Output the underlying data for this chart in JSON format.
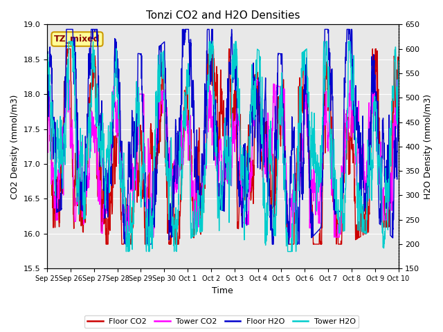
{
  "title": "Tonzi CO2 and H2O Densities",
  "xlabel": "Time",
  "ylabel_left": "CO2 Density (mmol/m3)",
  "ylabel_right": "H2O Density (mmol/m3)",
  "ylim_left": [
    15.5,
    19.0
  ],
  "ylim_right": [
    150,
    650
  ],
  "yticks_left": [
    15.5,
    16.0,
    16.5,
    17.0,
    17.5,
    18.0,
    18.5,
    19.0
  ],
  "yticks_right": [
    150,
    200,
    250,
    300,
    350,
    400,
    450,
    500,
    550,
    600,
    650
  ],
  "xtick_labels": [
    "Sep 25",
    "Sep 26",
    "Sep 27",
    "Sep 28",
    "Sep 29",
    "Sep 30",
    "Oct 1",
    "Oct 2",
    "Oct 3",
    "Oct 4",
    "Oct 5",
    "Oct 6",
    "Oct 7",
    "Oct 8",
    "Oct 9",
    "Oct 10"
  ],
  "colors": {
    "floor_co2": "#cc0000",
    "tower_co2": "#ff00ff",
    "floor_h2o": "#0000cc",
    "tower_h2o": "#00cccc"
  },
  "legend_labels": [
    "Floor CO2",
    "Tower CO2",
    "Floor H2O",
    "Tower H2O"
  ],
  "annotation_text": "TZ_mixed",
  "annotation_bbox_fc": "#ffff99",
  "annotation_bbox_ec": "#cc9900",
  "background_color": "#e8e8e8",
  "grid_color": "white",
  "linewidth": 1.0,
  "n_points": 2000
}
